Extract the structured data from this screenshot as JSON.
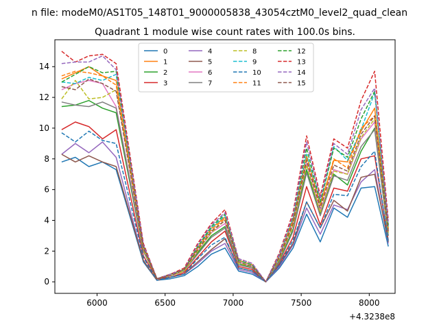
{
  "suptitle": "n file: modeM0/AS1T05_148T01_9000005838_43054cztM0_level2_quad_clean",
  "chart_data": {
    "type": "line",
    "title": "Quadrant 1 module wise count rates with 100.0s bins.",
    "xlabel": "",
    "ylabel": "",
    "x_offset_label": "+4.3238e8",
    "xlim": [
      5690,
      8190
    ],
    "ylim": [
      -0.75,
      15.75
    ],
    "x_ticks": [
      6000,
      6500,
      7000,
      7500,
      8000
    ],
    "y_ticks": [
      0,
      2,
      4,
      6,
      8,
      10,
      12,
      14
    ],
    "grid": false,
    "legend_position": "top-center",
    "legend_columns": 4,
    "x": [
      5740,
      5840,
      5940,
      6040,
      6140,
      6340,
      6440,
      6540,
      6640,
      6740,
      6840,
      6940,
      7040,
      7140,
      7240,
      7340,
      7440,
      7540,
      7640,
      7740,
      7840,
      7940,
      8040,
      8140
    ],
    "series": [
      {
        "name": "0",
        "color": "#1f77b4",
        "dash": "solid",
        "values": [
          7.8,
          8.1,
          7.5,
          7.8,
          7.3,
          1.3,
          0.1,
          0.2,
          0.4,
          1.0,
          1.8,
          2.2,
          0.7,
          0.5,
          0.0,
          0.9,
          2.2,
          4.4,
          2.6,
          4.8,
          4.2,
          6.1,
          6.2,
          2.3
        ]
      },
      {
        "name": "1",
        "color": "#ff7f0e",
        "dash": "solid",
        "values": [
          13.2,
          13.6,
          14.0,
          13.4,
          13.1,
          2.3,
          0.2,
          0.5,
          0.8,
          2.2,
          3.5,
          4.2,
          1.4,
          1.1,
          0.0,
          1.7,
          4.0,
          8.2,
          5.0,
          7.9,
          7.8,
          9.8,
          11.3,
          3.5
        ]
      },
      {
        "name": "2",
        "color": "#2ca02c",
        "dash": "solid",
        "values": [
          11.4,
          11.5,
          11.8,
          11.3,
          11.0,
          2.0,
          0.2,
          0.4,
          0.7,
          1.9,
          3.0,
          3.6,
          1.2,
          0.9,
          0.0,
          1.4,
          3.4,
          7.3,
          4.4,
          7.0,
          6.3,
          8.5,
          10.0,
          3.0
        ]
      },
      {
        "name": "3",
        "color": "#d62728",
        "dash": "solid",
        "values": [
          9.9,
          10.4,
          10.1,
          9.3,
          9.9,
          1.7,
          0.2,
          0.3,
          0.6,
          1.6,
          2.6,
          3.3,
          1.0,
          0.8,
          0.0,
          1.2,
          2.9,
          6.2,
          3.7,
          6.1,
          5.9,
          8.0,
          8.2,
          2.7
        ]
      },
      {
        "name": "4",
        "color": "#9467bd",
        "dash": "solid",
        "values": [
          8.3,
          9.0,
          8.4,
          9.1,
          8.1,
          1.4,
          0.1,
          0.3,
          0.5,
          1.2,
          2.0,
          2.5,
          0.8,
          0.6,
          0.0,
          1.0,
          2.4,
          4.8,
          3.1,
          5.0,
          4.7,
          6.5,
          7.3,
          2.5
        ]
      },
      {
        "name": "5",
        "color": "#8c564b",
        "dash": "solid",
        "values": [
          8.3,
          7.8,
          8.2,
          7.8,
          7.5,
          1.4,
          0.1,
          0.3,
          0.5,
          1.3,
          2.1,
          2.8,
          0.9,
          0.7,
          0.0,
          1.1,
          2.5,
          5.2,
          3.5,
          5.3,
          4.6,
          6.8,
          7.0,
          2.6
        ]
      },
      {
        "name": "6",
        "color": "#e377c2",
        "dash": "solid",
        "values": [
          12.5,
          12.9,
          13.1,
          12.9,
          11.4,
          2.1,
          0.2,
          0.4,
          0.7,
          2.0,
          3.2,
          3.8,
          1.3,
          1.0,
          0.0,
          1.5,
          3.7,
          7.7,
          4.6,
          7.3,
          7.0,
          9.3,
          10.4,
          3.2
        ]
      },
      {
        "name": "7",
        "color": "#7f7f7f",
        "dash": "solid",
        "values": [
          11.7,
          11.5,
          11.4,
          11.7,
          11.3,
          2.0,
          0.2,
          0.4,
          0.7,
          1.8,
          2.9,
          3.5,
          1.1,
          0.9,
          0.0,
          1.3,
          3.3,
          7.1,
          4.3,
          6.9,
          6.6,
          8.8,
          9.9,
          3.0
        ]
      },
      {
        "name": "8",
        "color": "#bcbd22",
        "dash": "dashed",
        "values": [
          11.9,
          13.1,
          11.9,
          12.0,
          12.5,
          2.1,
          0.2,
          0.4,
          0.7,
          2.0,
          3.2,
          4.0,
          1.2,
          1.0,
          0.0,
          1.5,
          3.6,
          7.6,
          4.5,
          7.2,
          7.0,
          9.4,
          10.6,
          3.2
        ]
      },
      {
        "name": "9",
        "color": "#17becf",
        "dash": "dashed",
        "values": [
          13.0,
          12.9,
          13.3,
          13.1,
          13.5,
          2.3,
          0.2,
          0.5,
          0.8,
          2.2,
          3.5,
          4.3,
          1.4,
          1.1,
          0.0,
          1.7,
          4.1,
          8.3,
          5.1,
          8.8,
          7.9,
          9.9,
          12.3,
          3.6
        ]
      },
      {
        "name": "10",
        "color": "#1f77b4",
        "dash": "dashed",
        "values": [
          9.7,
          9.1,
          9.8,
          9.2,
          9.0,
          1.6,
          0.1,
          0.3,
          0.5,
          1.5,
          2.4,
          2.9,
          0.9,
          0.7,
          0.0,
          1.1,
          2.7,
          5.2,
          3.5,
          5.7,
          5.6,
          7.5,
          8.5,
          2.6
        ]
      },
      {
        "name": "11",
        "color": "#ff7f0e",
        "dash": "dashed",
        "values": [
          13.4,
          13.7,
          13.6,
          13.4,
          12.8,
          2.3,
          0.2,
          0.5,
          0.8,
          2.2,
          3.4,
          4.1,
          1.4,
          1.1,
          0.0,
          1.7,
          4.0,
          8.1,
          5.0,
          8.0,
          7.4,
          10.0,
          10.8,
          3.4
        ]
      },
      {
        "name": "12",
        "color": "#2ca02c",
        "dash": "dashed",
        "values": [
          13.0,
          13.5,
          14.0,
          13.6,
          13.7,
          2.4,
          0.2,
          0.5,
          0.8,
          2.3,
          3.6,
          4.4,
          1.4,
          1.1,
          0.0,
          1.8,
          4.2,
          8.7,
          5.2,
          8.7,
          8.1,
          10.6,
          12.4,
          3.7
        ]
      },
      {
        "name": "13",
        "color": "#d62728",
        "dash": "dashed",
        "values": [
          15.0,
          14.3,
          14.7,
          14.8,
          14.2,
          2.5,
          0.2,
          0.5,
          0.9,
          2.5,
          3.8,
          4.7,
          1.5,
          1.2,
          0.0,
          1.9,
          4.5,
          9.5,
          5.6,
          9.3,
          8.7,
          11.8,
          13.7,
          4.0
        ]
      },
      {
        "name": "14",
        "color": "#9467bd",
        "dash": "dashed",
        "values": [
          14.2,
          14.3,
          14.3,
          14.7,
          13.8,
          2.4,
          0.2,
          0.5,
          0.8,
          2.4,
          3.7,
          4.5,
          1.5,
          1.2,
          0.0,
          1.8,
          4.3,
          9.1,
          5.4,
          9.0,
          8.3,
          11.2,
          12.6,
          3.8
        ]
      },
      {
        "name": "15",
        "color": "#8c564b",
        "dash": "dashed",
        "values": [
          12.7,
          12.5,
          13.2,
          12.9,
          12.4,
          2.2,
          0.2,
          0.4,
          0.8,
          2.1,
          3.3,
          4.0,
          1.3,
          1.0,
          0.0,
          1.6,
          3.8,
          7.9,
          4.8,
          7.6,
          7.2,
          9.6,
          10.8,
          3.3
        ]
      }
    ]
  }
}
